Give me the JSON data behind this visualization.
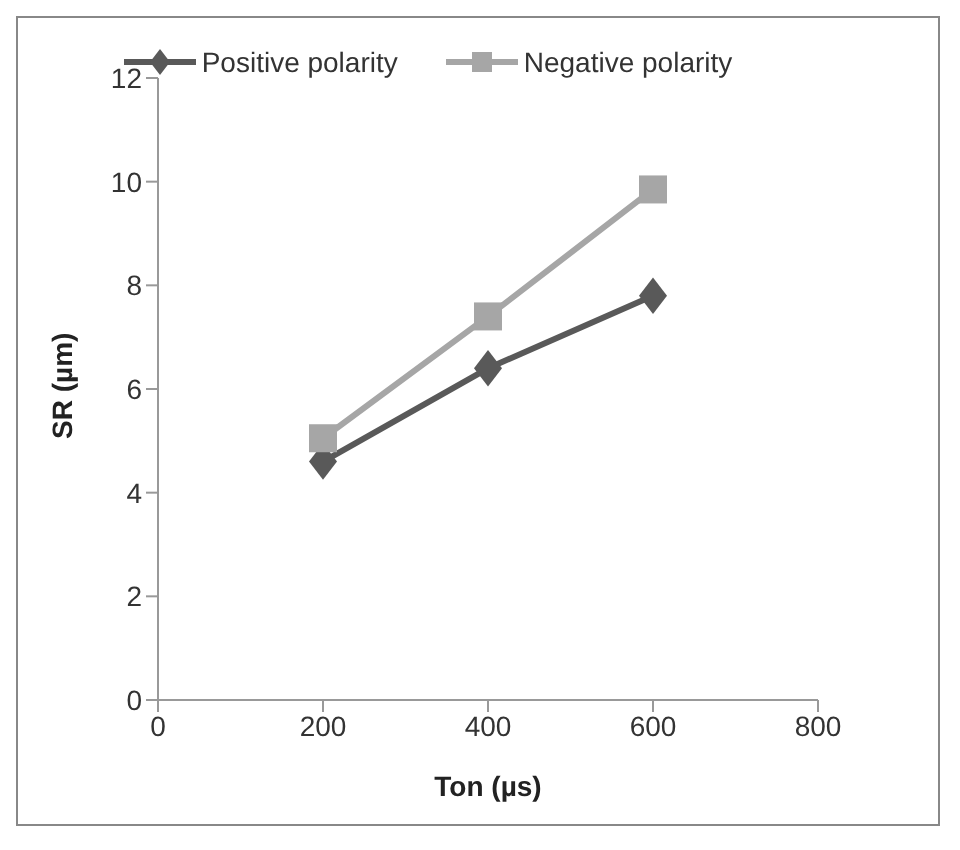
{
  "chart_data": {
    "type": "line",
    "xlabel": "Ton (µs)",
    "ylabel": "SR (µm)",
    "x": [
      200,
      400,
      600
    ],
    "series": [
      {
        "name": "Positive polarity",
        "color": "#595959",
        "values": [
          4.6,
          6.4,
          7.8
        ],
        "marker": "diamond"
      },
      {
        "name": "Negative polarity",
        "color": "#a6a6a6",
        "values": [
          5.05,
          7.4,
          9.85
        ],
        "marker": "square"
      }
    ],
    "xlim": [
      0,
      800
    ],
    "xticks": [
      0,
      200,
      400,
      600,
      800
    ],
    "ylim": [
      0,
      12
    ],
    "yticks": [
      0,
      2,
      4,
      6,
      8,
      10,
      12
    ],
    "grid": false,
    "legend": "top",
    "line_style": "solid"
  }
}
